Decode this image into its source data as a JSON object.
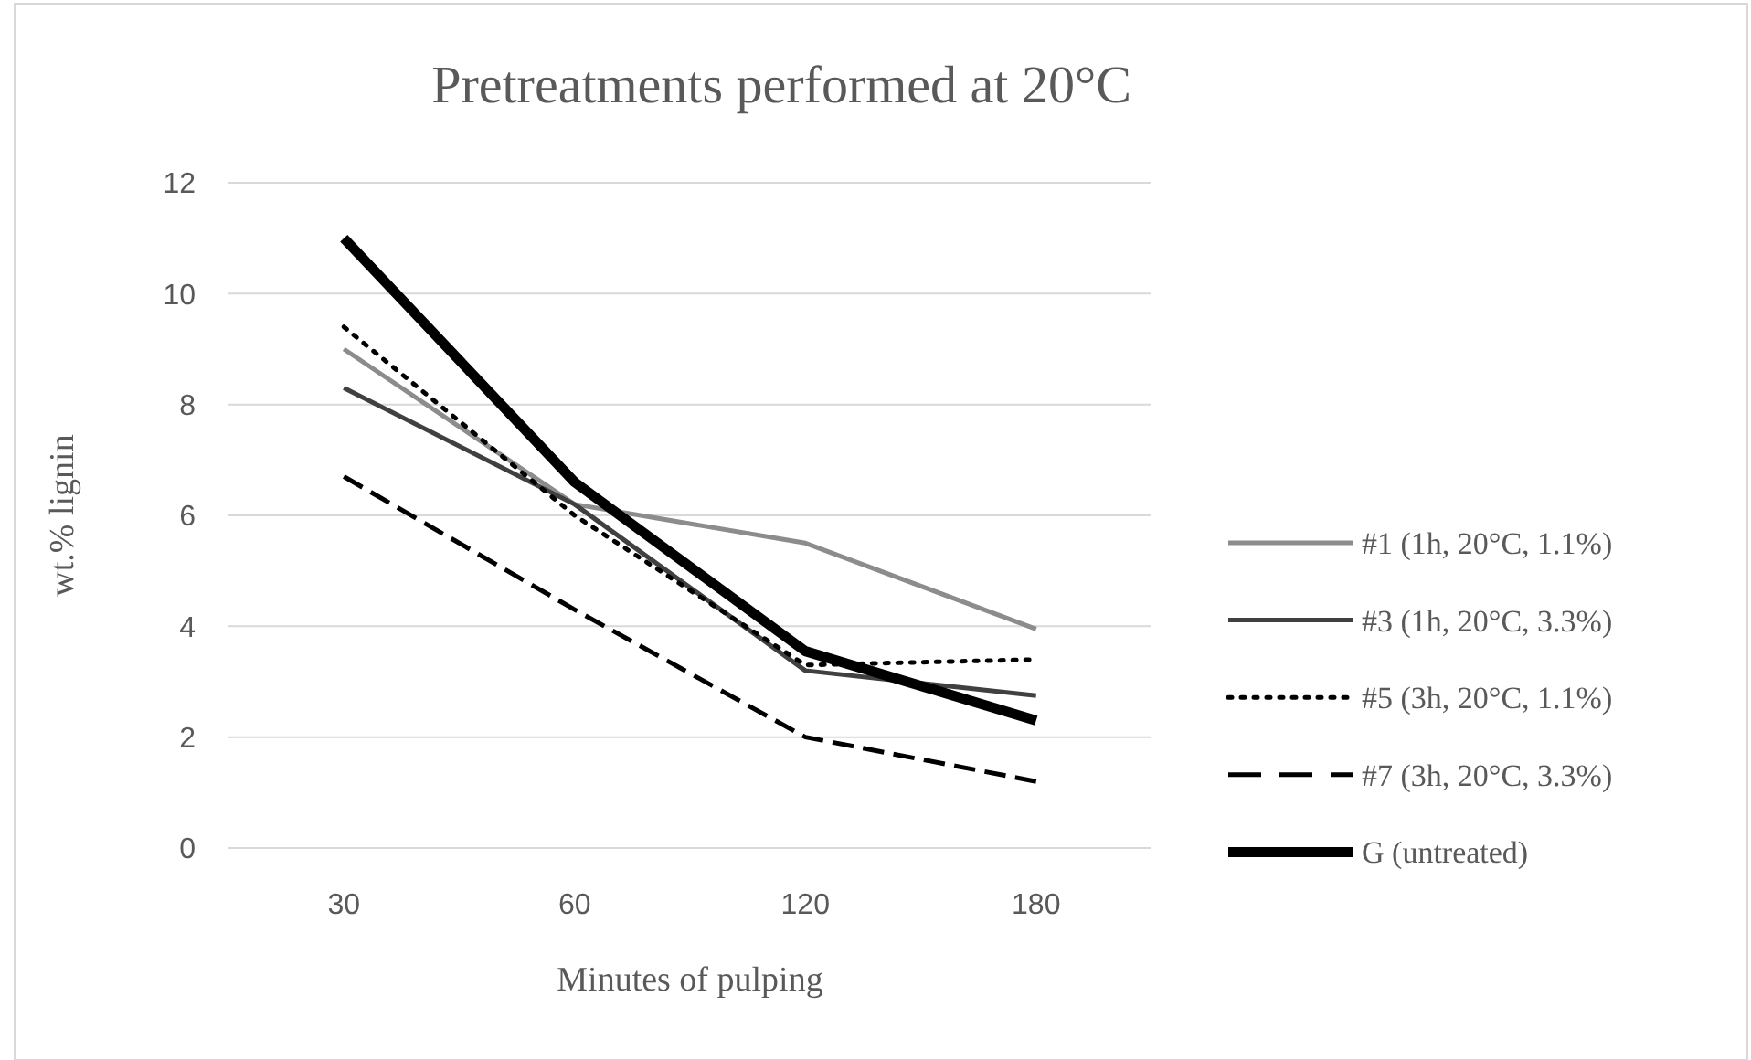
{
  "chart_data": {
    "type": "line",
    "title": "Pretreatments performed at 20°C",
    "xlabel": "Minutes of pulping",
    "ylabel": "wt.% lignin",
    "categories": [
      "30",
      "60",
      "120",
      "180"
    ],
    "ylim": [
      0,
      12
    ],
    "yticks": [
      0,
      2,
      4,
      6,
      8,
      10,
      12
    ],
    "grid": "y",
    "legend": "right",
    "marker": "none",
    "series": [
      {
        "name": "#1 (1h, 20°C, 1.1%)",
        "color": "#8c8c8c",
        "line_style": "solid",
        "values": [
          9.0,
          6.2,
          5.5,
          3.95
        ]
      },
      {
        "name": "#3 (1h, 20°C, 3.3%)",
        "color": "#404040",
        "line_style": "solid",
        "values": [
          8.3,
          6.2,
          3.2,
          2.75
        ]
      },
      {
        "name": "#5 (3h, 20°C, 1.1%)",
        "color": "#000000",
        "line_style": "dotted",
        "values": [
          9.4,
          6.0,
          3.3,
          3.4
        ]
      },
      {
        "name": "#7 (3h, 20°C, 3.3%)",
        "color": "#000000",
        "line_style": "dashed",
        "values": [
          6.7,
          4.3,
          2.0,
          1.2
        ]
      },
      {
        "name": "G (untreated)",
        "color": "#000000",
        "line_style": "solid",
        "values": [
          11.0,
          6.6,
          3.55,
          2.3
        ]
      }
    ]
  }
}
